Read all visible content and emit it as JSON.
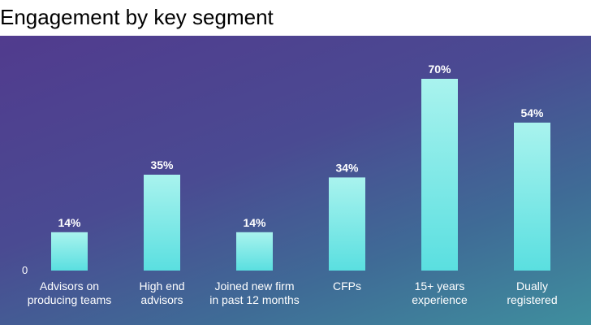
{
  "title": "Engagement by key segment",
  "colors": {
    "bar_top": "#a9f3ee",
    "bar_bottom": "#5adfe0",
    "label_text": "#ffffff",
    "title_text": "#000000"
  },
  "chart_data": {
    "type": "bar",
    "title": "Engagement by key segment",
    "categories": [
      "Advisors on\nproducing teams",
      "High end\nadvisors",
      "Joined new firm\nin past 12 months",
      "CFPs",
      "15+ years\nexperience",
      "Dually\nregistered"
    ],
    "values": [
      14,
      35,
      14,
      34,
      70,
      54
    ],
    "data_labels": [
      "14%",
      "35%",
      "14%",
      "34%",
      "70%",
      "54%"
    ],
    "y_tick_labels": [
      "0"
    ],
    "unit": "%",
    "ylim": [
      0,
      70
    ],
    "xlabel": "",
    "ylabel": "",
    "grid": false,
    "legend": "none"
  }
}
